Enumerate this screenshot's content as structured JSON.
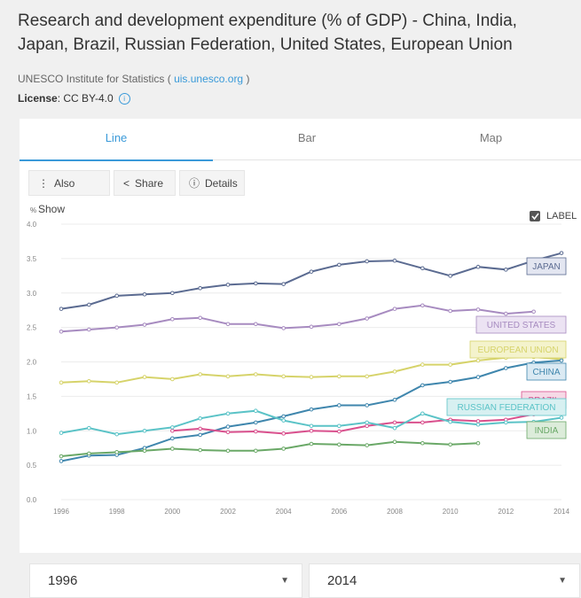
{
  "title": "Research and development expenditure (% of GDP) - China, India, Japan, Brazil, Russian Federation, United States, European Union",
  "source": {
    "prefix": "UNESCO Institute for Statistics (",
    "link": "uis.unesco.org",
    "suffix": ")"
  },
  "license": {
    "label": "License",
    "value": ": CC BY-4.0"
  },
  "tabs": [
    {
      "label": "Line",
      "active": true
    },
    {
      "label": "Bar",
      "active": false
    },
    {
      "label": "Map",
      "active": false
    }
  ],
  "toolbar": {
    "also_show": "Also Show",
    "share": "Share",
    "details": "Details"
  },
  "label_toggle": {
    "label": "LABEL",
    "checked": true
  },
  "range": {
    "from": "1996",
    "to": "2014"
  },
  "chart_data": {
    "type": "line",
    "title": "",
    "ylabel": "%",
    "xlabel": "",
    "ylim": [
      0,
      4.0
    ],
    "yticks": [
      "0.0",
      "0.5",
      "1.0",
      "1.5",
      "2.0",
      "2.5",
      "3.0",
      "3.5",
      "4.0"
    ],
    "xlim": [
      1996,
      2014
    ],
    "xticks": [
      "1996",
      "1998",
      "2000",
      "2002",
      "2004",
      "2006",
      "2008",
      "2010",
      "2012",
      "2014"
    ],
    "grid": true,
    "series": [
      {
        "name": "JAPAN",
        "color": "#5b6b91",
        "label_bg": "#e3e6f1",
        "x": [
          1996,
          1997,
          1998,
          1999,
          2000,
          2001,
          2002,
          2003,
          2004,
          2005,
          2006,
          2007,
          2008,
          2009,
          2010,
          2011,
          2012,
          2013,
          2014
        ],
        "values": [
          2.77,
          2.83,
          2.96,
          2.98,
          3.0,
          3.07,
          3.12,
          3.14,
          3.13,
          3.31,
          3.41,
          3.46,
          3.47,
          3.36,
          3.25,
          3.38,
          3.34,
          3.47,
          3.58
        ]
      },
      {
        "name": "UNITED STATES",
        "color": "#a78bc0",
        "label_bg": "#ece3f3",
        "x": [
          1996,
          1997,
          1998,
          1999,
          2000,
          2001,
          2002,
          2003,
          2004,
          2005,
          2006,
          2007,
          2008,
          2009,
          2010,
          2011,
          2012,
          2013
        ],
        "values": [
          2.44,
          2.47,
          2.5,
          2.54,
          2.62,
          2.64,
          2.55,
          2.55,
          2.49,
          2.51,
          2.55,
          2.63,
          2.77,
          2.82,
          2.74,
          2.76,
          2.7,
          2.73
        ]
      },
      {
        "name": "EUROPEAN UNION",
        "color": "#d6d36a",
        "label_bg": "#f4f3cc",
        "x": [
          1996,
          1997,
          1998,
          1999,
          2000,
          2001,
          2002,
          2003,
          2004,
          2005,
          2006,
          2007,
          2008,
          2009,
          2010,
          2011,
          2012,
          2013,
          2014
        ],
        "values": [
          1.7,
          1.72,
          1.7,
          1.78,
          1.75,
          1.82,
          1.79,
          1.82,
          1.79,
          1.78,
          1.79,
          1.79,
          1.86,
          1.96,
          1.96,
          2.02,
          2.06,
          2.07,
          2.04
        ]
      },
      {
        "name": "CHINA",
        "color": "#3f86ad",
        "label_bg": "#dbeaf3",
        "x": [
          1996,
          1997,
          1998,
          1999,
          2000,
          2001,
          2002,
          2003,
          2004,
          2005,
          2006,
          2007,
          2008,
          2009,
          2010,
          2011,
          2012,
          2013,
          2014
        ],
        "values": [
          0.56,
          0.64,
          0.65,
          0.75,
          0.89,
          0.94,
          1.06,
          1.12,
          1.21,
          1.31,
          1.37,
          1.37,
          1.45,
          1.66,
          1.71,
          1.78,
          1.91,
          1.99,
          2.02
        ]
      },
      {
        "name": "BRAZIL",
        "color": "#d9508d",
        "label_bg": "#f6d9e6",
        "x": [
          2000,
          2001,
          2002,
          2003,
          2004,
          2005,
          2006,
          2007,
          2008,
          2009,
          2010,
          2011,
          2012,
          2013
        ],
        "values": [
          1.0,
          1.03,
          0.98,
          0.99,
          0.96,
          1.0,
          0.99,
          1.07,
          1.12,
          1.12,
          1.16,
          1.14,
          1.16,
          1.24
        ]
      },
      {
        "name": "RUSSIAN FEDERATION",
        "color": "#5bc3c7",
        "label_bg": "#d7f0f1",
        "x": [
          1996,
          1997,
          1998,
          1999,
          2000,
          2001,
          2002,
          2003,
          2004,
          2005,
          2006,
          2007,
          2008,
          2009,
          2010,
          2011,
          2012,
          2013,
          2014
        ],
        "values": [
          0.97,
          1.04,
          0.95,
          1.0,
          1.05,
          1.18,
          1.25,
          1.29,
          1.15,
          1.07,
          1.07,
          1.12,
          1.04,
          1.25,
          1.13,
          1.09,
          1.12,
          1.13,
          1.19
        ]
      },
      {
        "name": "INDIA",
        "color": "#6aa867",
        "label_bg": "#dcecda",
        "x": [
          1996,
          1997,
          1998,
          1999,
          2000,
          2001,
          2002,
          2003,
          2004,
          2005,
          2006,
          2007,
          2008,
          2009,
          2010,
          2011
        ],
        "values": [
          0.63,
          0.67,
          0.69,
          0.71,
          0.74,
          0.72,
          0.71,
          0.71,
          0.74,
          0.81,
          0.8,
          0.79,
          0.84,
          0.82,
          0.8,
          0.82
        ]
      }
    ]
  }
}
